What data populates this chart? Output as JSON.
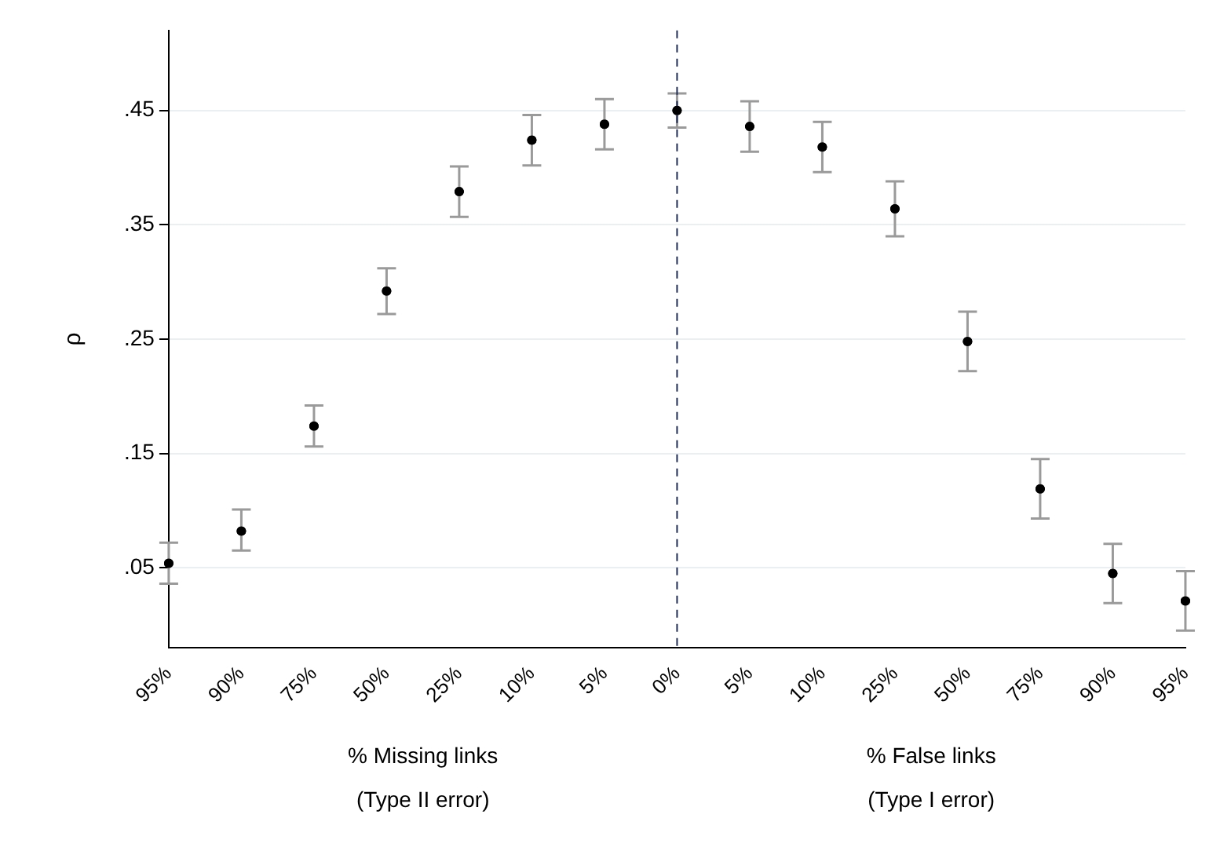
{
  "chart_data": {
    "type": "scatter",
    "ylabel": "ρ",
    "categories": [
      "95%",
      "90%",
      "75%",
      "50%",
      "25%",
      "10%",
      "5%",
      "0%",
      "5%",
      "10%",
      "25%",
      "50%",
      "75%",
      "90%",
      "95%"
    ],
    "values": [
      0.054,
      0.082,
      0.174,
      0.292,
      0.379,
      0.424,
      0.438,
      0.45,
      0.436,
      0.418,
      0.364,
      0.248,
      0.119,
      0.045,
      0.021
    ],
    "errors": [
      [
        0.036,
        0.072
      ],
      [
        0.065,
        0.101
      ],
      [
        0.156,
        0.192
      ],
      [
        0.272,
        0.312
      ],
      [
        0.357,
        0.401
      ],
      [
        0.402,
        0.446
      ],
      [
        0.416,
        0.46
      ],
      [
        0.435,
        0.465
      ],
      [
        0.414,
        0.458
      ],
      [
        0.396,
        0.44
      ],
      [
        0.34,
        0.388
      ],
      [
        0.222,
        0.274
      ],
      [
        0.093,
        0.145
      ],
      [
        0.019,
        0.071
      ],
      [
        -0.005,
        0.047
      ]
    ],
    "color": "#000000",
    "marker": "circle",
    "ylim": [
      -0.02,
      0.52
    ],
    "yticks": [
      {
        "value": 0.05,
        "label": ".05"
      },
      {
        "value": 0.15,
        "label": ".15"
      },
      {
        "value": 0.25,
        "label": ".25"
      },
      {
        "value": 0.35,
        "label": ".35"
      },
      {
        "value": 0.45,
        "label": ".45"
      }
    ],
    "grid": "y",
    "ref_lines": [
      {
        "axis": "x",
        "value": "0%",
        "color": "#1f2d5a",
        "line_style": "dashed"
      }
    ],
    "annotations": [
      "% Missing links\n(Type II error)",
      "% False links\n(Type I error)"
    ]
  }
}
